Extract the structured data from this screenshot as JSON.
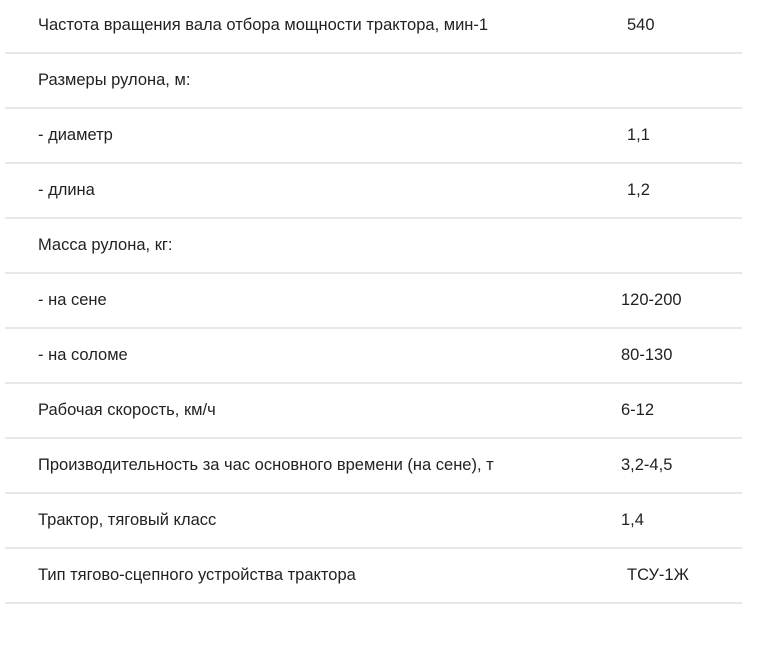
{
  "specs": [
    {
      "label": "Частота вращения вала отбора мощности трактора, мин-1",
      "value": "540"
    },
    {
      "label": "Размеры рулона, м:",
      "value": ""
    },
    {
      "label": "- диаметр",
      "value": "1,1"
    },
    {
      "label": "- длина",
      "value": "1,2"
    },
    {
      "label": "Масса рулона, кг:",
      "value": ""
    },
    {
      "label": "- на сене",
      "value": "120-200"
    },
    {
      "label": "- на соломе",
      "value": "80-130"
    },
    {
      "label": "Рабочая скорость, км/ч",
      "value": "6-12"
    },
    {
      "label": "Производительность за час основного времени (на сене), т",
      "value": "3,2-4,5"
    },
    {
      "label": "Трактор, тяговый класс",
      "value": "1,4"
    },
    {
      "label": "Тип тягово-сцепного устройства трактора",
      "value": "ТСУ-1Ж"
    }
  ]
}
